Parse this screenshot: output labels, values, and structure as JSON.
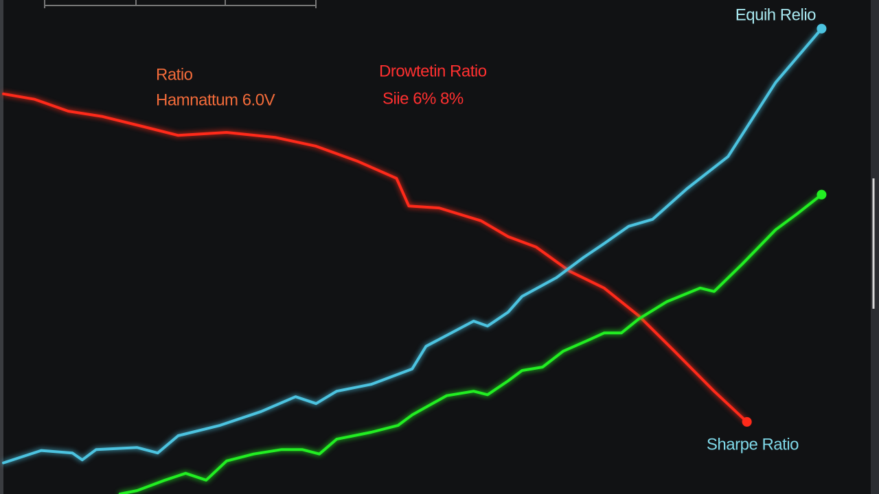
{
  "chart_data": {
    "type": "line",
    "xlim": [
      0,
      100
    ],
    "ylim": [
      0,
      100
    ],
    "annotations": [
      {
        "text": "Ratio",
        "color": "#f26b3a"
      },
      {
        "text": "Hamnattum 6.0V",
        "color": "#f26b3a"
      },
      {
        "text": "Drowtetin Ratio",
        "color": "#ff3030"
      },
      {
        "text": "Siie 6% 8%",
        "color": "#ff3030"
      },
      {
        "text": "Equih Relio",
        "color": "#a8e8f0"
      },
      {
        "text": "Sharpe Ratio",
        "color": "#7fd8e8"
      }
    ],
    "series": [
      {
        "color": "#ff2a1a",
        "x": [
          0,
          3.8,
          7.9,
          12.1,
          17.2,
          21.3,
          27.2,
          33.1,
          38.1,
          43.1,
          47.9,
          49.4,
          53.1,
          58.2,
          61.5,
          64.9,
          69.0,
          73.2,
          77.4,
          81.6,
          86.6,
          90.6
        ],
        "values": [
          81.0,
          79.9,
          77.5,
          76.4,
          74.3,
          72.6,
          73.2,
          72.2,
          70.4,
          67.4,
          63.9,
          58.3,
          57.9,
          55.3,
          52.1,
          50.0,
          45.1,
          41.7,
          36.1,
          29.2,
          20.8,
          14.6
        ]
      },
      {
        "color": "#4cc3e0",
        "x": [
          0,
          4.6,
          8.4,
          9.6,
          11.3,
          16.3,
          18.8,
          21.3,
          26.4,
          31.4,
          35.6,
          38.1,
          40.6,
          44.8,
          49.8,
          51.5,
          57.3,
          59.0,
          61.5,
          63.2,
          67.4,
          70.7,
          73.2,
          76.2,
          79.1,
          83.3,
          88.3,
          94.1,
          99.7
        ],
        "values": [
          6.3,
          8.8,
          8.3,
          6.9,
          9.0,
          9.4,
          8.3,
          11.8,
          13.9,
          16.7,
          19.7,
          18.3,
          20.8,
          22.2,
          25.3,
          29.9,
          35.0,
          34.0,
          36.8,
          40.0,
          43.8,
          47.9,
          50.7,
          54.2,
          55.6,
          61.8,
          68.3,
          83.3,
          94.2
        ]
      },
      {
        "color": "#22ee22",
        "x": [
          14.2,
          16.3,
          19.7,
          22.2,
          24.7,
          27.2,
          30.5,
          33.9,
          36.4,
          38.5,
          40.6,
          44.8,
          48.1,
          49.8,
          54.0,
          57.3,
          59.0,
          61.5,
          63.2,
          65.7,
          68.2,
          71.5,
          73.2,
          75.3,
          77.4,
          80.8,
          84.9,
          86.6,
          90.0,
          94.1,
          96.7,
          99.7
        ],
        "values": [
          0,
          0.7,
          2.8,
          4.2,
          2.8,
          6.7,
          8.1,
          9.0,
          9.0,
          8.1,
          11.1,
          12.5,
          13.9,
          16.0,
          19.9,
          20.8,
          20.1,
          22.9,
          25.0,
          25.7,
          28.9,
          31.3,
          32.6,
          32.6,
          35.4,
          38.9,
          41.7,
          41.0,
          46.5,
          53.5,
          56.7,
          60.6
        ]
      }
    ]
  }
}
